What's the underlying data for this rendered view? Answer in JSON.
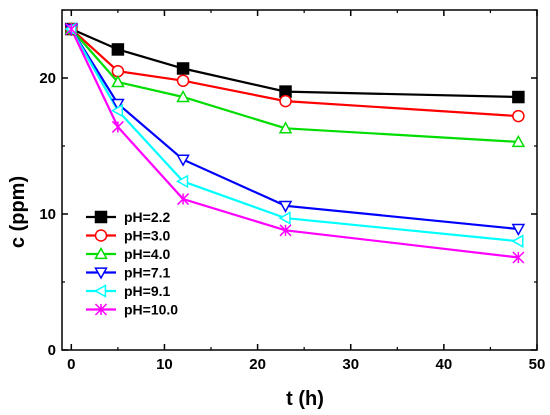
{
  "chart_data": {
    "type": "line",
    "title": "",
    "xlabel": "t (h)",
    "ylabel": "c (ppm)",
    "xlim": [
      -1,
      50
    ],
    "ylim": [
      0,
      25
    ],
    "xticks": [
      0,
      10,
      20,
      30,
      40,
      50
    ],
    "yticks": [
      0,
      10,
      20
    ],
    "legend": "bottom-left",
    "grid": false,
    "x": [
      0,
      5,
      12,
      23,
      48
    ],
    "series": [
      {
        "name": "pH=2.2",
        "values": [
          23.6,
          22.1,
          20.7,
          19.0,
          18.6
        ],
        "color": "#000000",
        "marker": "filled-square"
      },
      {
        "name": "pH=3.0",
        "values": [
          23.6,
          20.5,
          19.8,
          18.3,
          17.2
        ],
        "color": "#ff0000",
        "marker": "circle"
      },
      {
        "name": "pH=4.0",
        "values": [
          23.6,
          19.7,
          18.6,
          16.3,
          15.3
        ],
        "color": "#00dd00",
        "marker": "triangle-up"
      },
      {
        "name": "pH=7.1",
        "values": [
          23.6,
          18.1,
          14.0,
          10.6,
          8.9
        ],
        "color": "#0000ff",
        "marker": "triangle-down"
      },
      {
        "name": "pH=9.1",
        "values": [
          23.6,
          17.6,
          12.4,
          9.7,
          8.0
        ],
        "color": "#00ffff",
        "marker": "triangle-left"
      },
      {
        "name": "pH=10.0",
        "values": [
          23.6,
          16.4,
          11.1,
          8.8,
          6.8
        ],
        "color": "#ff00ff",
        "marker": "x-star"
      }
    ]
  }
}
